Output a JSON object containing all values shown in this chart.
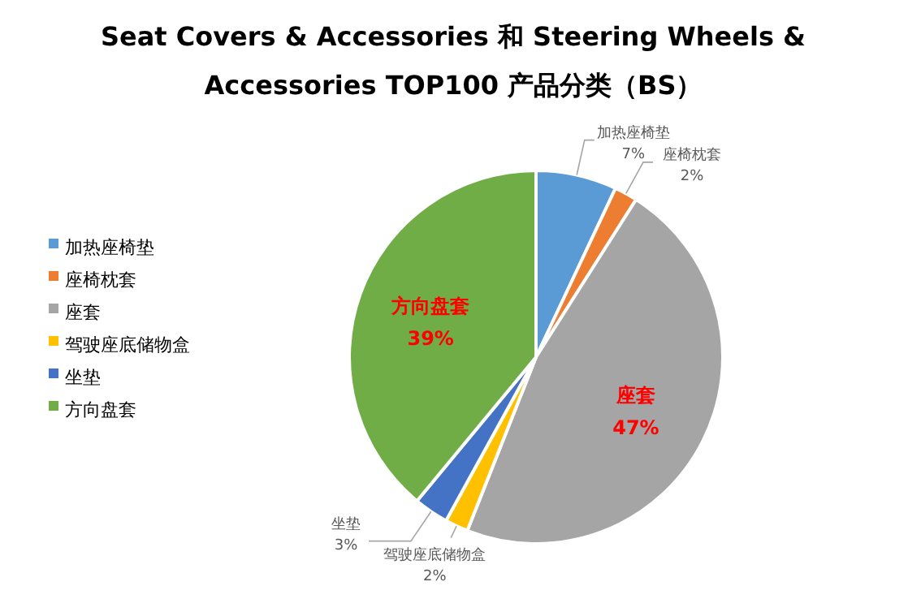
{
  "chart_data": {
    "type": "pie",
    "title": "Seat Covers & Accessories 和 Steering Wheels & Accessories  TOP100 产品分类（BS）",
    "categories": [
      "加热座椅垫",
      "座椅枕套",
      "座套",
      "驾驶座底储物盒",
      "坐垫",
      "方向盘套"
    ],
    "values": [
      7,
      2,
      47,
      2,
      3,
      39
    ],
    "value_labels": [
      "7%",
      "2%",
      "47%",
      "2%",
      "3%",
      "39%"
    ],
    "colors": [
      "#5b9bd5",
      "#ed7d31",
      "#a5a5a5",
      "#ffc000",
      "#4472c4",
      "#70ad47"
    ],
    "legend": "left"
  }
}
